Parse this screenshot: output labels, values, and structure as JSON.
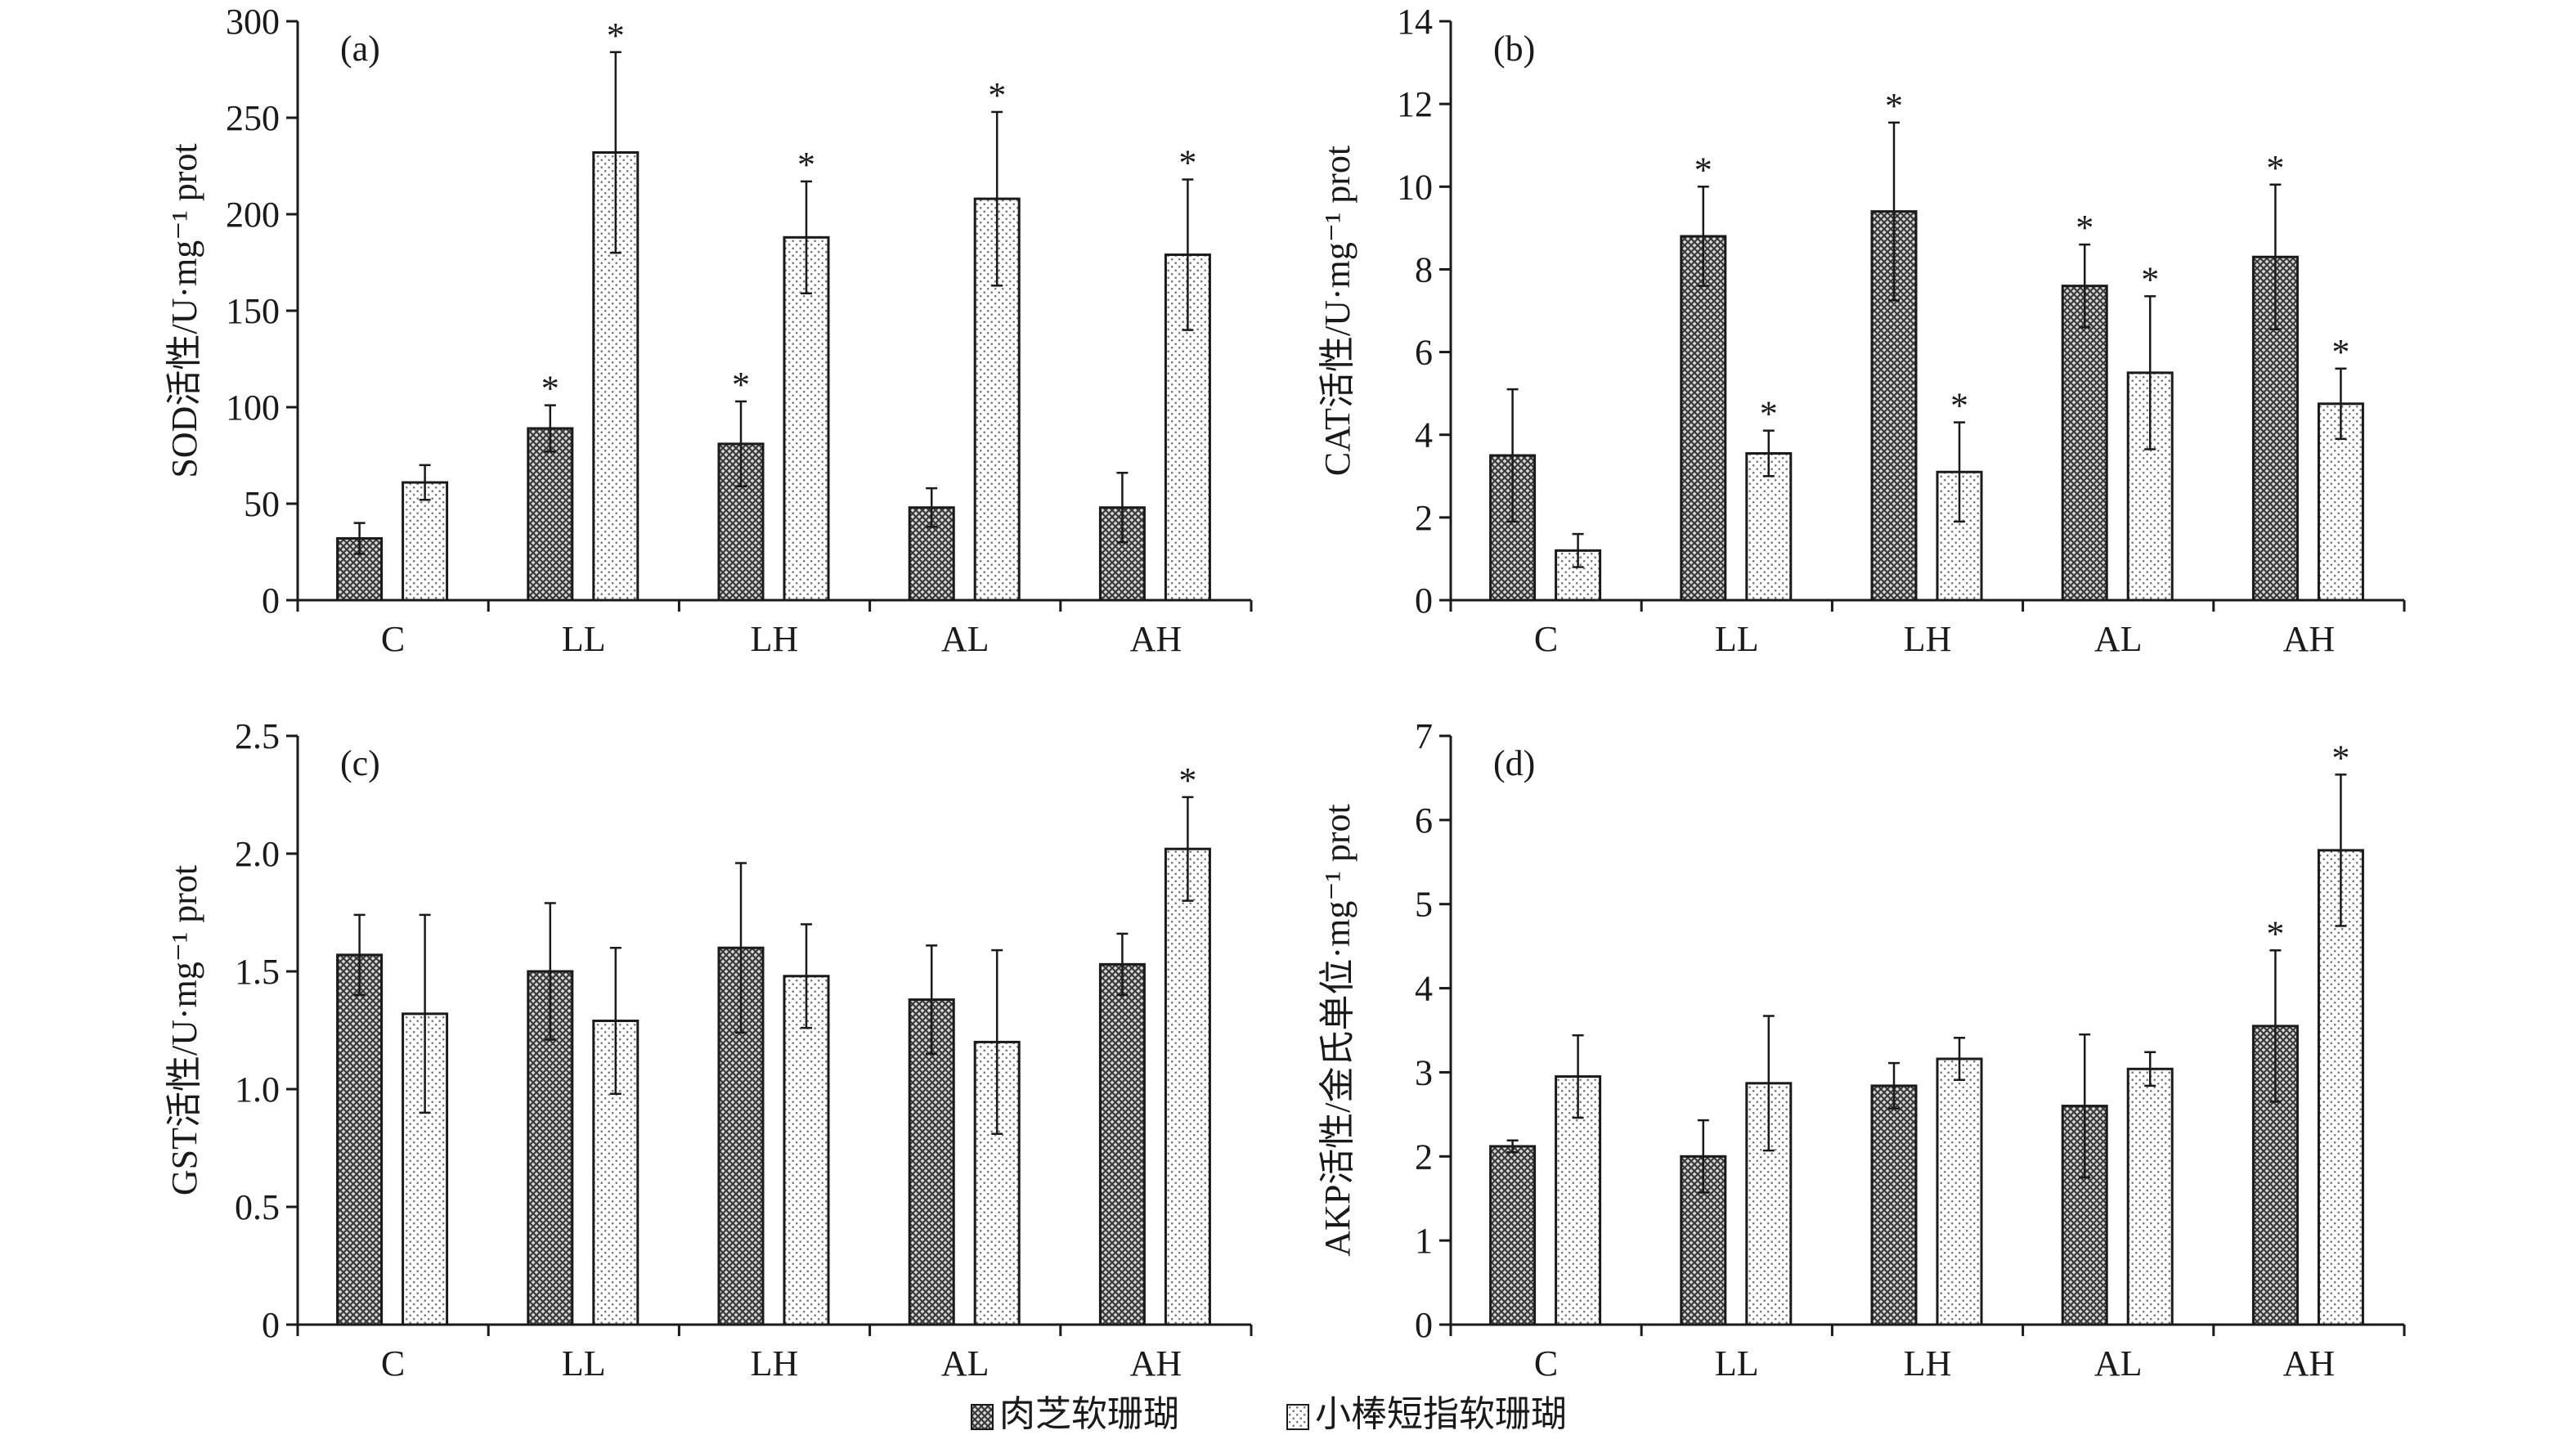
{
  "chart_data": [
    {
      "type": "bar",
      "panel_label": "(a)",
      "categories": [
        "C",
        "LL",
        "LH",
        "AL",
        "AH"
      ],
      "ylabel": "SOD活性/U·mg⁻¹ prot",
      "ylim": [
        0,
        300
      ],
      "yticks": [
        0,
        50,
        100,
        150,
        200,
        250,
        300
      ],
      "ytick_labels": [
        "0",
        "50",
        "100",
        "150",
        "200",
        "250",
        "300"
      ],
      "series": [
        {
          "name": "肉芝软珊瑚",
          "values": [
            32,
            89,
            81,
            48,
            48
          ],
          "errors": [
            8,
            12,
            22,
            10,
            18
          ],
          "significant": [
            false,
            true,
            true,
            false,
            false
          ]
        },
        {
          "name": "小棒短指软珊瑚",
          "values": [
            61,
            232,
            188,
            208,
            179
          ],
          "errors": [
            9,
            52,
            29,
            45,
            39
          ],
          "significant": [
            false,
            true,
            true,
            true,
            true
          ]
        }
      ]
    },
    {
      "type": "bar",
      "panel_label": "(b)",
      "categories": [
        "C",
        "LL",
        "LH",
        "AL",
        "AH"
      ],
      "ylabel": "CAT活性/U·mg⁻¹ prot",
      "ylim": [
        0,
        14
      ],
      "yticks": [
        0,
        2,
        4,
        6,
        8,
        10,
        12,
        14
      ],
      "ytick_labels": [
        "0",
        "2",
        "4",
        "6",
        "8",
        "10",
        "12",
        "14"
      ],
      "series": [
        {
          "name": "肉芝软珊瑚",
          "values": [
            3.5,
            8.8,
            9.4,
            7.6,
            8.3
          ],
          "errors": [
            1.6,
            1.2,
            2.15,
            1.0,
            1.75
          ],
          "significant": [
            false,
            true,
            true,
            true,
            true
          ]
        },
        {
          "name": "小棒短指软珊瑚",
          "values": [
            1.2,
            3.55,
            3.1,
            5.5,
            4.75
          ],
          "errors": [
            0.4,
            0.55,
            1.2,
            1.85,
            0.85
          ],
          "significant": [
            false,
            true,
            true,
            true,
            true
          ]
        }
      ]
    },
    {
      "type": "bar",
      "panel_label": "(c)",
      "categories": [
        "C",
        "LL",
        "LH",
        "AL",
        "AH"
      ],
      "ylabel": "GST活性/U·mg⁻¹ prot",
      "ylim": [
        0,
        2.5
      ],
      "yticks": [
        0,
        0.5,
        1.0,
        1.5,
        2.0,
        2.5
      ],
      "ytick_labels": [
        "0",
        "0.5",
        "1.0",
        "1.5",
        "2.0",
        "2.5"
      ],
      "series": [
        {
          "name": "肉芝软珊瑚",
          "values": [
            1.57,
            1.5,
            1.6,
            1.38,
            1.53
          ],
          "errors": [
            0.17,
            0.29,
            0.36,
            0.23,
            0.13
          ],
          "significant": [
            false,
            false,
            false,
            false,
            false
          ]
        },
        {
          "name": "小棒短指软珊瑚",
          "values": [
            1.32,
            1.29,
            1.48,
            1.2,
            2.02
          ],
          "errors": [
            0.42,
            0.31,
            0.22,
            0.39,
            0.22
          ],
          "significant": [
            false,
            false,
            false,
            false,
            true
          ]
        }
      ]
    },
    {
      "type": "bar",
      "panel_label": "(d)",
      "categories": [
        "C",
        "LL",
        "LH",
        "AL",
        "AH"
      ],
      "ylabel": "AKP活性/金氏单位·mg⁻¹ prot",
      "ylim": [
        0,
        7
      ],
      "yticks": [
        0,
        1,
        2,
        3,
        4,
        5,
        6,
        7
      ],
      "ytick_labels": [
        "0",
        "1",
        "2",
        "3",
        "4",
        "5",
        "6",
        "7"
      ],
      "series": [
        {
          "name": "肉芝软珊瑚",
          "values": [
            2.12,
            2.0,
            2.84,
            2.6,
            3.55
          ],
          "errors": [
            0.07,
            0.43,
            0.27,
            0.85,
            0.9
          ],
          "significant": [
            false,
            false,
            false,
            false,
            true
          ]
        },
        {
          "name": "小棒短指软珊瑚",
          "values": [
            2.95,
            2.87,
            3.16,
            3.04,
            5.64
          ],
          "errors": [
            0.49,
            0.8,
            0.25,
            0.2,
            0.9
          ],
          "significant": [
            false,
            false,
            false,
            false,
            true
          ]
        }
      ]
    }
  ],
  "legend": {
    "position": "bottom-center",
    "items": [
      {
        "label": "肉芝软珊瑚"
      },
      {
        "label": "小棒短指软珊瑚"
      }
    ]
  },
  "significance_marker": "*",
  "colors": {
    "bar_fill": "#ffffff",
    "pattern_dark": "#4a4a4a",
    "pattern_light": "#8a8a8a",
    "axis": "#1a1a1a"
  }
}
